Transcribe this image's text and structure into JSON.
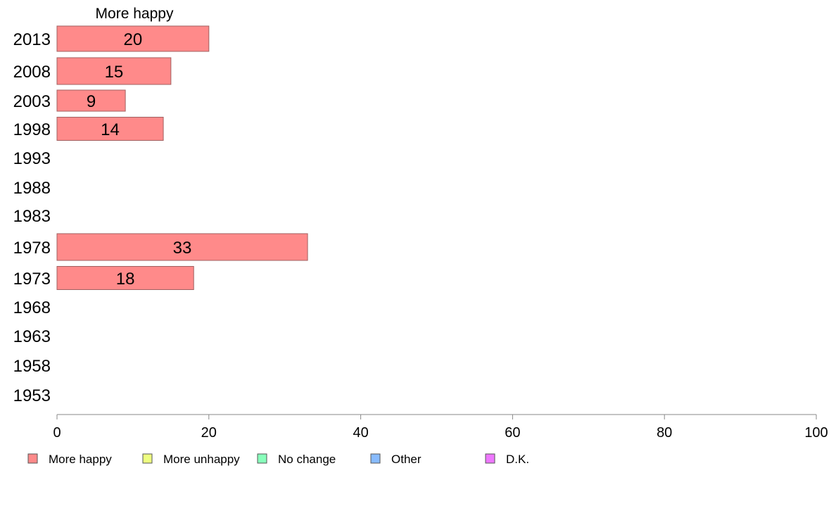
{
  "chart_data": {
    "type": "bar",
    "orientation": "horizontal",
    "stacked": true,
    "header_label": "More happy",
    "categories": [
      "2013",
      "2008",
      "2003",
      "1998",
      "1993",
      "1988",
      "1983",
      "1978",
      "1973",
      "1968",
      "1963",
      "1958",
      "1953"
    ],
    "series": [
      {
        "name": "More happy",
        "color": "#ff8a8a",
        "values": [
          20,
          15,
          9,
          14,
          null,
          null,
          null,
          33,
          18,
          null,
          null,
          null,
          null
        ],
        "labels": [
          "20",
          "15",
          "9",
          "14",
          "",
          "",
          "",
          "33",
          "18",
          "",
          "",
          "",
          ""
        ]
      },
      {
        "name": "More unhappy",
        "color": "#eeff80",
        "values": [
          null,
          null,
          null,
          null,
          null,
          null,
          null,
          null,
          null,
          null,
          null,
          null,
          null
        ]
      },
      {
        "name": "No change",
        "color": "#88ffbb",
        "values": [
          null,
          null,
          null,
          null,
          null,
          null,
          null,
          null,
          null,
          null,
          null,
          null,
          null
        ]
      },
      {
        "name": "Other",
        "color": "#88bbff",
        "values": [
          null,
          null,
          null,
          null,
          null,
          null,
          null,
          null,
          null,
          null,
          null,
          null,
          null
        ]
      },
      {
        "name": "D.K.",
        "color": "#ee77ff",
        "values": [
          null,
          null,
          null,
          null,
          null,
          null,
          null,
          null,
          null,
          null,
          null,
          null,
          null
        ]
      }
    ],
    "xlim": [
      0,
      100
    ],
    "xticks": [
      "0",
      "20",
      "40",
      "60",
      "80",
      "100"
    ],
    "grid": false,
    "legend_position": "bottom"
  }
}
